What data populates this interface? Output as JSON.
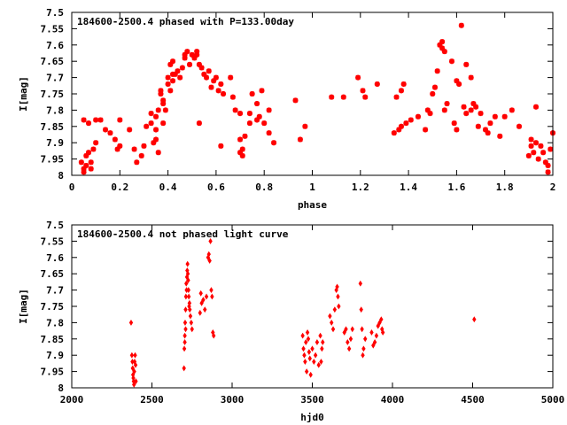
{
  "chart_data": [
    {
      "type": "scatter",
      "title": "184600-2500.4 phased with P=133.00day",
      "xlabel": "phase",
      "ylabel": "I[mag]",
      "xlim": [
        0,
        2
      ],
      "ylim": [
        7.5,
        8
      ],
      "y_inverted": true,
      "x_ticks": [
        0,
        0.2,
        0.4,
        0.6,
        0.8,
        1,
        1.2,
        1.4,
        1.6,
        1.8,
        2
      ],
      "x_tick_labels": [
        "0",
        "0.2",
        "0.4",
        "0.6",
        "0.8",
        "1",
        "1.2",
        "1.4",
        "1.6",
        "1.8",
        "2"
      ],
      "y_ticks": [
        7.5,
        7.55,
        7.6,
        7.65,
        7.7,
        7.75,
        7.8,
        7.85,
        7.9,
        7.95,
        8
      ],
      "y_tick_labels": [
        "7.5",
        "7.55",
        "7.6",
        "7.65",
        "7.7",
        "7.75",
        "7.8",
        "7.85",
        "7.9",
        "7.95",
        "8"
      ],
      "grid": false,
      "marker_color": "#ff0000",
      "points": [
        [
          0.04,
          7.96
        ],
        [
          0.05,
          7.98
        ],
        [
          0.05,
          7.99
        ],
        [
          0.06,
          7.97
        ],
        [
          0.06,
          7.94
        ],
        [
          0.07,
          7.93
        ],
        [
          0.08,
          7.96
        ],
        [
          0.08,
          7.98
        ],
        [
          0.05,
          7.83
        ],
        [
          0.07,
          7.84
        ],
        [
          0.09,
          7.92
        ],
        [
          0.1,
          7.83
        ],
        [
          0.12,
          7.83
        ],
        [
          0.1,
          7.9
        ],
        [
          0.14,
          7.86
        ],
        [
          0.16,
          7.87
        ],
        [
          0.18,
          7.89
        ],
        [
          0.19,
          7.92
        ],
        [
          0.2,
          7.91
        ],
        [
          0.2,
          7.83
        ],
        [
          0.24,
          7.86
        ],
        [
          0.26,
          7.92
        ],
        [
          0.27,
          7.96
        ],
        [
          0.29,
          7.94
        ],
        [
          0.3,
          7.91
        ],
        [
          0.31,
          7.85
        ],
        [
          0.33,
          7.84
        ],
        [
          0.33,
          7.81
        ],
        [
          0.34,
          7.9
        ],
        [
          0.35,
          7.86
        ],
        [
          0.35,
          7.82
        ],
        [
          0.36,
          7.8
        ],
        [
          0.35,
          7.89
        ],
        [
          0.36,
          7.93
        ],
        [
          0.37,
          7.75
        ],
        [
          0.37,
          7.74
        ],
        [
          0.38,
          7.78
        ],
        [
          0.38,
          7.77
        ],
        [
          0.38,
          7.84
        ],
        [
          0.39,
          7.8
        ],
        [
          0.4,
          7.7
        ],
        [
          0.4,
          7.72
        ],
        [
          0.41,
          7.74
        ],
        [
          0.41,
          7.66
        ],
        [
          0.42,
          7.69
        ],
        [
          0.42,
          7.71
        ],
        [
          0.43,
          7.69
        ],
        [
          0.42,
          7.65
        ],
        [
          0.44,
          7.68
        ],
        [
          0.45,
          7.7
        ],
        [
          0.46,
          7.67
        ],
        [
          0.47,
          7.63
        ],
        [
          0.47,
          7.64
        ],
        [
          0.48,
          7.62
        ],
        [
          0.49,
          7.66
        ],
        [
          0.5,
          7.63
        ],
        [
          0.51,
          7.64
        ],
        [
          0.52,
          7.63
        ],
        [
          0.52,
          7.62
        ],
        [
          0.53,
          7.66
        ],
        [
          0.54,
          7.67
        ],
        [
          0.53,
          7.84
        ],
        [
          0.55,
          7.69
        ],
        [
          0.56,
          7.7
        ],
        [
          0.57,
          7.68
        ],
        [
          0.58,
          7.73
        ],
        [
          0.59,
          7.71
        ],
        [
          0.6,
          7.7
        ],
        [
          0.61,
          7.74
        ],
        [
          0.62,
          7.72
        ],
        [
          0.63,
          7.75
        ],
        [
          0.62,
          7.91
        ],
        [
          0.66,
          7.7
        ],
        [
          0.67,
          7.76
        ],
        [
          0.68,
          7.8
        ],
        [
          0.7,
          7.89
        ],
        [
          0.7,
          7.93
        ],
        [
          0.71,
          7.94
        ],
        [
          0.71,
          7.92
        ],
        [
          0.72,
          7.88
        ],
        [
          0.7,
          7.81
        ],
        [
          0.74,
          7.81
        ],
        [
          0.74,
          7.84
        ],
        [
          0.75,
          7.75
        ],
        [
          0.77,
          7.83
        ],
        [
          0.78,
          7.82
        ],
        [
          0.77,
          7.78
        ],
        [
          0.8,
          7.84
        ],
        [
          0.79,
          7.74
        ],
        [
          0.82,
          7.87
        ],
        [
          0.82,
          7.8
        ],
        [
          0.84,
          7.9
        ],
        [
          0.93,
          7.77
        ],
        [
          0.95,
          7.89
        ],
        [
          0.97,
          7.85
        ],
        [
          1.08,
          7.76
        ],
        [
          1.13,
          7.76
        ],
        [
          1.19,
          7.7
        ],
        [
          1.21,
          7.74
        ],
        [
          1.22,
          7.76
        ],
        [
          1.27,
          7.72
        ],
        [
          1.35,
          7.76
        ],
        [
          1.37,
          7.74
        ],
        [
          1.38,
          7.72
        ],
        [
          1.34,
          7.87
        ],
        [
          1.36,
          7.86
        ],
        [
          1.37,
          7.85
        ],
        [
          1.39,
          7.84
        ],
        [
          1.41,
          7.83
        ],
        [
          1.44,
          7.82
        ],
        [
          1.47,
          7.86
        ],
        [
          1.48,
          7.8
        ],
        [
          1.49,
          7.81
        ],
        [
          1.5,
          7.75
        ],
        [
          1.51,
          7.73
        ],
        [
          1.52,
          7.68
        ],
        [
          1.53,
          7.6
        ],
        [
          1.54,
          7.59
        ],
        [
          1.54,
          7.61
        ],
        [
          1.55,
          7.62
        ],
        [
          1.55,
          7.8
        ],
        [
          1.56,
          7.78
        ],
        [
          1.58,
          7.65
        ],
        [
          1.59,
          7.84
        ],
        [
          1.6,
          7.86
        ],
        [
          1.6,
          7.71
        ],
        [
          1.61,
          7.72
        ],
        [
          1.62,
          7.54
        ],
        [
          1.63,
          7.79
        ],
        [
          1.64,
          7.81
        ],
        [
          1.64,
          7.66
        ],
        [
          1.66,
          7.7
        ],
        [
          1.66,
          7.8
        ],
        [
          1.67,
          7.78
        ],
        [
          1.68,
          7.79
        ],
        [
          1.69,
          7.85
        ],
        [
          1.7,
          7.81
        ],
        [
          1.72,
          7.86
        ],
        [
          1.73,
          7.87
        ],
        [
          1.74,
          7.84
        ],
        [
          1.76,
          7.82
        ],
        [
          1.78,
          7.88
        ],
        [
          1.8,
          7.82
        ],
        [
          1.83,
          7.8
        ],
        [
          1.86,
          7.85
        ],
        [
          1.9,
          7.94
        ],
        [
          1.91,
          7.91
        ],
        [
          1.91,
          7.89
        ],
        [
          1.92,
          7.93
        ],
        [
          1.93,
          7.9
        ],
        [
          1.93,
          7.79
        ],
        [
          1.94,
          7.95
        ],
        [
          1.95,
          7.91
        ],
        [
          1.96,
          7.93
        ],
        [
          1.97,
          7.96
        ],
        [
          1.98,
          7.97
        ],
        [
          1.98,
          7.99
        ],
        [
          1.99,
          7.92
        ],
        [
          2.0,
          7.87
        ]
      ]
    },
    {
      "type": "scatter",
      "title": "184600-2500.4 not phased light curve",
      "xlabel": "hjd0",
      "ylabel": "I[mag]",
      "xlim": [
        2000,
        5000
      ],
      "ylim": [
        7.5,
        8
      ],
      "y_inverted": true,
      "x_ticks": [
        2000,
        2500,
        3000,
        3500,
        4000,
        4500,
        5000
      ],
      "x_tick_labels": [
        "2000",
        "2500",
        "3000",
        "3500",
        "4000",
        "4500",
        "5000"
      ],
      "y_ticks": [
        7.5,
        7.55,
        7.6,
        7.65,
        7.7,
        7.75,
        7.8,
        7.85,
        7.9,
        7.95,
        8
      ],
      "y_tick_labels": [
        "7.5",
        "7.55",
        "7.6",
        "7.65",
        "7.7",
        "7.75",
        "7.8",
        "7.85",
        "7.9",
        "7.95",
        "8"
      ],
      "grid": false,
      "marker_color": "#ff0000",
      "points": [
        [
          2370,
          7.8
        ],
        [
          2375,
          7.9
        ],
        [
          2378,
          7.92
        ],
        [
          2380,
          7.94
        ],
        [
          2382,
          7.96
        ],
        [
          2384,
          7.97
        ],
        [
          2386,
          7.98
        ],
        [
          2388,
          7.99
        ],
        [
          2390,
          7.95
        ],
        [
          2392,
          7.92
        ],
        [
          2395,
          7.9
        ],
        [
          2398,
          7.93
        ],
        [
          2400,
          7.98
        ],
        [
          2700,
          7.94
        ],
        [
          2702,
          7.88
        ],
        [
          2705,
          7.84
        ],
        [
          2707,
          7.8
        ],
        [
          2710,
          7.76
        ],
        [
          2712,
          7.72
        ],
        [
          2714,
          7.68
        ],
        [
          2716,
          7.7
        ],
        [
          2718,
          7.66
        ],
        [
          2720,
          7.64
        ],
        [
          2722,
          7.62
        ],
        [
          2724,
          7.65
        ],
        [
          2726,
          7.67
        ],
        [
          2728,
          7.7
        ],
        [
          2730,
          7.72
        ],
        [
          2732,
          7.75
        ],
        [
          2734,
          7.74
        ],
        [
          2736,
          7.76
        ],
        [
          2740,
          7.78
        ],
        [
          2745,
          7.8
        ],
        [
          2750,
          7.82
        ],
        [
          2705,
          7.86
        ],
        [
          2710,
          7.82
        ],
        [
          2800,
          7.77
        ],
        [
          2805,
          7.71
        ],
        [
          2810,
          7.74
        ],
        [
          2820,
          7.73
        ],
        [
          2830,
          7.76
        ],
        [
          2840,
          7.72
        ],
        [
          2850,
          7.6
        ],
        [
          2855,
          7.59
        ],
        [
          2860,
          7.61
        ],
        [
          2865,
          7.55
        ],
        [
          2870,
          7.7
        ],
        [
          2875,
          7.72
        ],
        [
          2880,
          7.83
        ],
        [
          2885,
          7.84
        ],
        [
          3440,
          7.84
        ],
        [
          3445,
          7.88
        ],
        [
          3450,
          7.9
        ],
        [
          3455,
          7.92
        ],
        [
          3460,
          7.86
        ],
        [
          3465,
          7.95
        ],
        [
          3470,
          7.83
        ],
        [
          3475,
          7.85
        ],
        [
          3480,
          7.89
        ],
        [
          3485,
          7.91
        ],
        [
          3490,
          7.96
        ],
        [
          3500,
          7.88
        ],
        [
          3510,
          7.92
        ],
        [
          3520,
          7.9
        ],
        [
          3530,
          7.86
        ],
        [
          3540,
          7.93
        ],
        [
          3550,
          7.84
        ],
        [
          3560,
          7.88
        ],
        [
          3555,
          7.92
        ],
        [
          3565,
          7.86
        ],
        [
          3610,
          7.78
        ],
        [
          3620,
          7.8
        ],
        [
          3630,
          7.82
        ],
        [
          3640,
          7.76
        ],
        [
          3650,
          7.7
        ],
        [
          3655,
          7.69
        ],
        [
          3660,
          7.72
        ],
        [
          3665,
          7.75
        ],
        [
          3700,
          7.83
        ],
        [
          3710,
          7.82
        ],
        [
          3720,
          7.86
        ],
        [
          3730,
          7.88
        ],
        [
          3740,
          7.85
        ],
        [
          3750,
          7.82
        ],
        [
          3800,
          7.68
        ],
        [
          3805,
          7.76
        ],
        [
          3810,
          7.82
        ],
        [
          3815,
          7.9
        ],
        [
          3820,
          7.88
        ],
        [
          3830,
          7.85
        ],
        [
          3870,
          7.83
        ],
        [
          3880,
          7.87
        ],
        [
          3890,
          7.86
        ],
        [
          3900,
          7.84
        ],
        [
          3910,
          7.81
        ],
        [
          3920,
          7.8
        ],
        [
          3930,
          7.79
        ],
        [
          3935,
          7.82
        ],
        [
          3940,
          7.83
        ],
        [
          4510,
          7.79
        ]
      ]
    }
  ]
}
